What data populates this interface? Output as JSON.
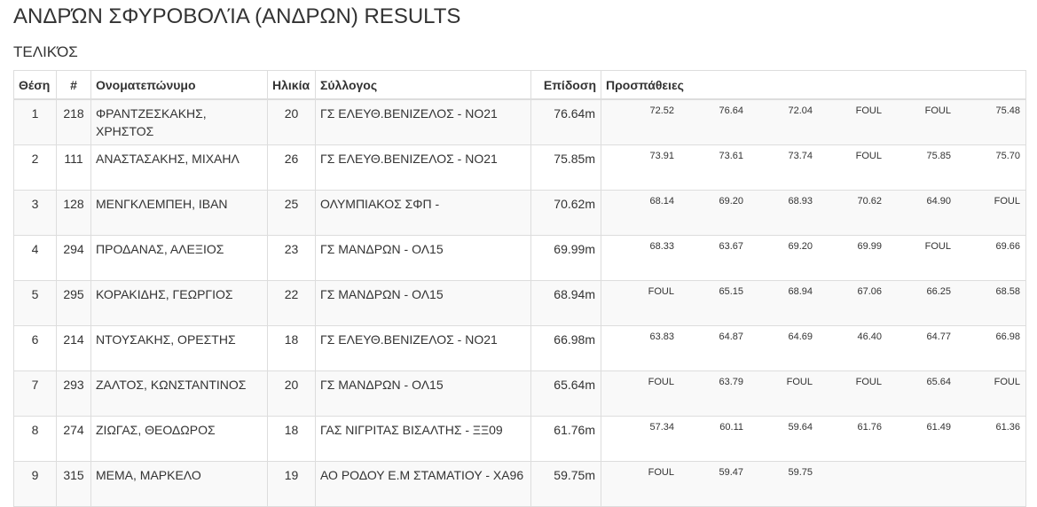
{
  "page": {
    "title": "ΑΝΔΡΏΝ ΣΦΥΡΟΒΟΛΊΑ (ΑΝΔΡΩΝ) RESULTS",
    "section": "ΤΕΛΙΚΌΣ"
  },
  "table": {
    "headers": {
      "position": "Θέση",
      "bib": "#",
      "name": "Ονοματεπώνυμο",
      "age": "Ηλικία",
      "club": "Σύλλογος",
      "performance": "Επίδοση",
      "attempts": "Προσπάθειες"
    },
    "rows": [
      {
        "position": "1",
        "bib": "218",
        "name": "ΦΡΑΝΤΖΕΣΚΑΚΗΣ, ΧΡΗΣΤΟΣ",
        "age": "20",
        "club": "ΓΣ ΕΛΕΥΘ.ΒΕΝΙΖΕΛΟΣ - ΝΟ21",
        "performance": "76.64m",
        "attempts": [
          "72.52",
          "76.64",
          "72.04",
          "FOUL",
          "FOUL",
          "75.48"
        ]
      },
      {
        "position": "2",
        "bib": "111",
        "name": "ΑΝΑΣΤΑΣΑΚΗΣ, ΜΙΧΑΗΛ",
        "age": "26",
        "club": "ΓΣ ΕΛΕΥΘ.ΒΕΝΙΖΕΛΟΣ - ΝΟ21",
        "performance": "75.85m",
        "attempts": [
          "73.91",
          "73.61",
          "73.74",
          "FOUL",
          "75.85",
          "75.70"
        ]
      },
      {
        "position": "3",
        "bib": "128",
        "name": "ΜΕΝΓΚΛΕΜΠΕΗ, ΙΒΑΝ",
        "age": "25",
        "club": "ΟΛΥΜΠΙΑΚΟΣ ΣΦΠ -",
        "performance": "70.62m",
        "attempts": [
          "68.14",
          "69.20",
          "68.93",
          "70.62",
          "64.90",
          "FOUL"
        ]
      },
      {
        "position": "4",
        "bib": "294",
        "name": "ΠΡΟΔΑΝΑΣ, ΑΛΕΞΙΟΣ",
        "age": "23",
        "club": "ΓΣ ΜΑΝΔΡΩΝ - ΟΛ15",
        "performance": "69.99m",
        "attempts": [
          "68.33",
          "63.67",
          "69.20",
          "69.99",
          "FOUL",
          "69.66"
        ]
      },
      {
        "position": "5",
        "bib": "295",
        "name": "ΚΟΡΑΚΙΔΗΣ, ΓΕΩΡΓΙΟΣ",
        "age": "22",
        "club": "ΓΣ ΜΑΝΔΡΩΝ - ΟΛ15",
        "performance": "68.94m",
        "attempts": [
          "FOUL",
          "65.15",
          "68.94",
          "67.06",
          "66.25",
          "68.58"
        ]
      },
      {
        "position": "6",
        "bib": "214",
        "name": "ΝΤΟΥΣΑΚΗΣ, ΟΡΕΣΤΗΣ",
        "age": "18",
        "club": "ΓΣ ΕΛΕΥΘ.ΒΕΝΙΖΕΛΟΣ - ΝΟ21",
        "performance": "66.98m",
        "attempts": [
          "63.83",
          "64.87",
          "64.69",
          "46.40",
          "64.77",
          "66.98"
        ]
      },
      {
        "position": "7",
        "bib": "293",
        "name": "ΖΑΛΤΟΣ, ΚΩΝΣΤΑΝΤΙΝΟΣ",
        "age": "20",
        "club": "ΓΣ ΜΑΝΔΡΩΝ - ΟΛ15",
        "performance": "65.64m",
        "attempts": [
          "FOUL",
          "63.79",
          "FOUL",
          "FOUL",
          "65.64",
          "FOUL"
        ]
      },
      {
        "position": "8",
        "bib": "274",
        "name": "ΖΙΩΓΑΣ, ΘΕΟΔΩΡΟΣ",
        "age": "18",
        "club": "ΓΑΣ ΝΙΓΡΙΤΑΣ ΒΙΣΑΛΤΗΣ - ΞΞ09",
        "performance": "61.76m",
        "attempts": [
          "57.34",
          "60.11",
          "59.64",
          "61.76",
          "61.49",
          "61.36"
        ]
      },
      {
        "position": "9",
        "bib": "315",
        "name": "ΜΕΜΑ, ΜΑΡΚΕΛΟ",
        "age": "19",
        "club": "ΑΟ ΡΟΔΟΥ Ε.Μ ΣΤΑΜΑΤΙΟΥ - ΧΑ96",
        "performance": "59.75m",
        "attempts": [
          "FOUL",
          "59.47",
          "59.75",
          "",
          "",
          ""
        ]
      }
    ]
  }
}
